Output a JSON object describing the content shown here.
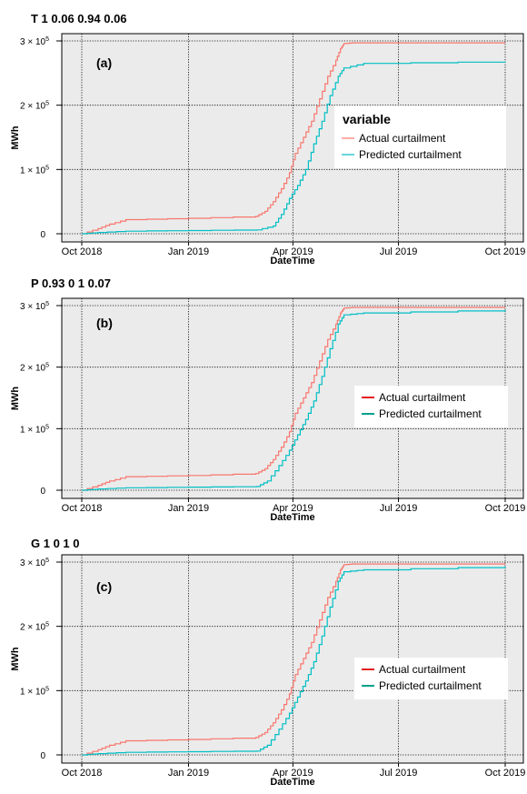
{
  "chart_data": [
    {
      "type": "line",
      "title": "T 1 0.06 0.94 0.06",
      "panel_label": "(a)",
      "xlabel": "DateTime",
      "ylabel": "MWh",
      "x_ticks": [
        "Oct 2018",
        "Jan 2019",
        "Apr 2019",
        "Jul 2019",
        "Oct 2019"
      ],
      "y_ticks": [
        "0",
        "1 × 10⁵",
        "2 × 10⁵",
        "3 × 10⁵"
      ],
      "xlim": [
        "2018-10-01",
        "2019-10-01"
      ],
      "ylim": [
        0,
        300000
      ],
      "grid": true,
      "legend": {
        "title": "variable",
        "position": "right-center"
      },
      "series": [
        {
          "name": "Actual curtailment",
          "color": "#f8766d",
          "x": [
            "2018-10-01",
            "2018-10-15",
            "2018-10-25",
            "2018-11-08",
            "2019-01-01",
            "2019-02-28",
            "2019-03-08",
            "2019-03-15",
            "2019-03-22",
            "2019-03-29",
            "2019-04-03",
            "2019-04-10",
            "2019-04-17",
            "2019-04-24",
            "2019-05-01",
            "2019-05-08",
            "2019-05-12",
            "2019-05-15",
            "2019-05-22",
            "2019-10-01"
          ],
          "y": [
            0,
            8000,
            15000,
            22000,
            24000,
            27000,
            35000,
            50000,
            70000,
            95000,
            125000,
            150000,
            175000,
            210000,
            245000,
            270000,
            288000,
            296000,
            297000,
            297000
          ]
        },
        {
          "name": "Predicted curtailment",
          "color": "#00bfc4",
          "x": [
            "2018-10-01",
            "2018-10-15",
            "2018-11-08",
            "2019-01-01",
            "2019-03-01",
            "2019-03-15",
            "2019-03-22",
            "2019-03-29",
            "2019-04-05",
            "2019-04-12",
            "2019-04-19",
            "2019-04-26",
            "2019-05-03",
            "2019-05-10",
            "2019-05-15",
            "2019-06-01",
            "2019-10-01"
          ],
          "y": [
            0,
            2000,
            4000,
            5000,
            6000,
            12000,
            30000,
            55000,
            75000,
            100000,
            140000,
            175000,
            215000,
            245000,
            258000,
            265000,
            268000
          ]
        }
      ]
    },
    {
      "type": "line",
      "title": "P 0.93 0 1 0.07",
      "panel_label": "(b)",
      "xlabel": "DateTime",
      "ylabel": "MWh",
      "x_ticks": [
        "Oct 2018",
        "Jan 2019",
        "Apr 2019",
        "Jul 2019",
        "Oct 2019"
      ],
      "y_ticks": [
        "0",
        "1 × 10⁵",
        "2 × 10⁵",
        "3 × 10⁵"
      ],
      "xlim": [
        "2018-10-01",
        "2019-10-01"
      ],
      "ylim": [
        0,
        300000
      ],
      "grid": true,
      "legend": {
        "position": "right-center"
      },
      "series": [
        {
          "name": "Actual curtailment",
          "color": "#f8766d",
          "legend_color": "#e41a1c",
          "x": [
            "2018-10-01",
            "2018-10-15",
            "2018-10-25",
            "2018-11-08",
            "2019-01-01",
            "2019-02-28",
            "2019-03-08",
            "2019-03-15",
            "2019-03-22",
            "2019-03-29",
            "2019-04-03",
            "2019-04-10",
            "2019-04-17",
            "2019-04-24",
            "2019-05-01",
            "2019-05-08",
            "2019-05-12",
            "2019-05-15",
            "2019-05-22",
            "2019-10-01"
          ],
          "y": [
            0,
            8000,
            15000,
            22000,
            24000,
            27000,
            35000,
            50000,
            70000,
            95000,
            125000,
            150000,
            175000,
            210000,
            245000,
            270000,
            288000,
            296000,
            297000,
            297000
          ]
        },
        {
          "name": "Predicted curtailment",
          "color": "#00bfc4",
          "legend_color": "#00a08a",
          "x": [
            "2018-10-01",
            "2018-10-15",
            "2018-11-08",
            "2019-01-01",
            "2019-03-01",
            "2019-03-10",
            "2019-03-20",
            "2019-03-29",
            "2019-04-05",
            "2019-04-12",
            "2019-04-19",
            "2019-04-26",
            "2019-05-03",
            "2019-05-10",
            "2019-05-15",
            "2019-06-01",
            "2019-10-01"
          ],
          "y": [
            0,
            2000,
            4000,
            5000,
            6000,
            15000,
            40000,
            65000,
            90000,
            115000,
            145000,
            185000,
            230000,
            270000,
            285000,
            288000,
            293000
          ]
        }
      ]
    },
    {
      "type": "line",
      "title": "G 1 0 1 0",
      "panel_label": "(c)",
      "xlabel": "DateTime",
      "ylabel": "MWh",
      "x_ticks": [
        "Oct 2018",
        "Jan 2019",
        "Apr 2019",
        "Jul 2019",
        "Oct 2019"
      ],
      "y_ticks": [
        "0",
        "1 × 10⁵",
        "2 × 10⁵",
        "3 × 10⁵"
      ],
      "xlim": [
        "2018-10-01",
        "2019-10-01"
      ],
      "ylim": [
        0,
        300000
      ],
      "grid": true,
      "legend": {
        "position": "right-center"
      },
      "series": [
        {
          "name": "Actual curtailment",
          "color": "#f8766d",
          "legend_color": "#e41a1c",
          "x": [
            "2018-10-01",
            "2018-10-15",
            "2018-10-25",
            "2018-11-08",
            "2019-01-01",
            "2019-02-28",
            "2019-03-08",
            "2019-03-15",
            "2019-03-22",
            "2019-03-29",
            "2019-04-03",
            "2019-04-10",
            "2019-04-17",
            "2019-04-24",
            "2019-05-01",
            "2019-05-08",
            "2019-05-12",
            "2019-05-15",
            "2019-05-22",
            "2019-10-01"
          ],
          "y": [
            0,
            8000,
            15000,
            22000,
            24000,
            27000,
            35000,
            50000,
            70000,
            95000,
            125000,
            150000,
            175000,
            210000,
            245000,
            270000,
            288000,
            296000,
            297000,
            297000
          ]
        },
        {
          "name": "Predicted curtailment",
          "color": "#00bfc4",
          "legend_color": "#00a08a",
          "x": [
            "2018-10-01",
            "2018-10-15",
            "2018-11-08",
            "2019-01-01",
            "2019-03-01",
            "2019-03-10",
            "2019-03-20",
            "2019-03-29",
            "2019-04-05",
            "2019-04-12",
            "2019-04-19",
            "2019-04-26",
            "2019-05-03",
            "2019-05-10",
            "2019-05-15",
            "2019-06-01",
            "2019-10-01"
          ],
          "y": [
            0,
            2000,
            4000,
            5000,
            6000,
            15000,
            40000,
            65000,
            90000,
            115000,
            145000,
            185000,
            230000,
            270000,
            285000,
            288000,
            293000
          ]
        }
      ]
    }
  ]
}
